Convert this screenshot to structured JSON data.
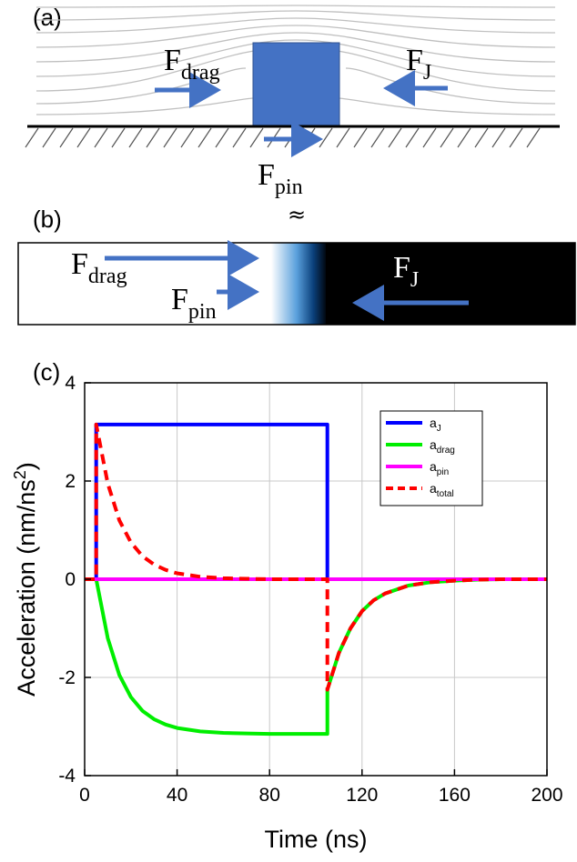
{
  "panels": {
    "a": {
      "label": "(a)",
      "forces": {
        "drag": {
          "main": "F",
          "sub": "drag"
        },
        "j": {
          "main": "F",
          "sub": "J"
        },
        "pin": {
          "main": "F",
          "sub": "pin"
        }
      },
      "approx_symbol": "≈"
    },
    "b": {
      "label": "(b)",
      "forces": {
        "drag": {
          "main": "F",
          "sub": "drag"
        },
        "j": {
          "main": "F",
          "sub": "J"
        },
        "pin": {
          "main": "F",
          "sub": "pin"
        }
      }
    },
    "c": {
      "label": "(c)"
    }
  },
  "colors": {
    "arrow": "#4472c4",
    "block": "#4472c4",
    "a_j": "#0000ff",
    "a_drag": "#00ee00",
    "a_pin": "#ff00ff",
    "a_total": "#ff0000"
  },
  "chart_data": {
    "type": "line",
    "title": "",
    "xlabel": "Time (ns)",
    "ylabel_parts": {
      "main": "Acceleration (nm/ns",
      "sup": "2",
      "end": ")"
    },
    "xlim": [
      0,
      200
    ],
    "ylim": [
      -4,
      4
    ],
    "xticks": [
      0,
      40,
      80,
      120,
      160,
      200
    ],
    "yticks": [
      -4,
      -2,
      0,
      2,
      4
    ],
    "grid": true,
    "legend_position": "top-right",
    "series": [
      {
        "key": "a_j",
        "name_main": "a",
        "name_sub": "J",
        "color": "#0000ff",
        "dash": false,
        "x": [
          0,
          5,
          5,
          105,
          105,
          200
        ],
        "y": [
          0,
          0,
          3.15,
          3.15,
          0,
          0
        ]
      },
      {
        "key": "a_drag",
        "name_main": "a",
        "name_sub": "drag",
        "color": "#00ee00",
        "dash": false,
        "x": [
          0,
          5,
          10,
          15,
          20,
          25,
          30,
          35,
          40,
          50,
          60,
          70,
          80,
          90,
          100,
          105,
          105,
          110,
          115,
          120,
          125,
          130,
          140,
          150,
          160,
          170,
          180,
          190,
          200
        ],
        "y": [
          0,
          0,
          -1.2,
          -1.95,
          -2.4,
          -2.68,
          -2.85,
          -2.96,
          -3.03,
          -3.1,
          -3.13,
          -3.14,
          -3.15,
          -3.15,
          -3.15,
          -3.15,
          -2.25,
          -1.5,
          -1.0,
          -0.65,
          -0.43,
          -0.29,
          -0.13,
          -0.06,
          -0.03,
          -0.01,
          0,
          0,
          0
        ]
      },
      {
        "key": "a_pin",
        "name_main": "a",
        "name_sub": "pin",
        "color": "#ff00ff",
        "dash": false,
        "x": [
          0,
          200
        ],
        "y": [
          0,
          0
        ]
      },
      {
        "key": "a_total",
        "name_main": "a",
        "name_sub": "total",
        "color": "#ff0000",
        "dash": true,
        "x": [
          0,
          5,
          5,
          10,
          15,
          20,
          25,
          30,
          35,
          40,
          50,
          60,
          70,
          80,
          90,
          100,
          105,
          105,
          110,
          115,
          120,
          125,
          130,
          140,
          150,
          160,
          170,
          180,
          190,
          200
        ],
        "y": [
          0,
          0,
          3.15,
          1.95,
          1.2,
          0.75,
          0.47,
          0.3,
          0.19,
          0.12,
          0.05,
          0.02,
          0.01,
          0,
          0,
          0,
          0,
          -2.25,
          -1.5,
          -1.0,
          -0.65,
          -0.43,
          -0.29,
          -0.13,
          -0.06,
          -0.03,
          -0.01,
          0,
          0,
          0
        ]
      }
    ]
  }
}
